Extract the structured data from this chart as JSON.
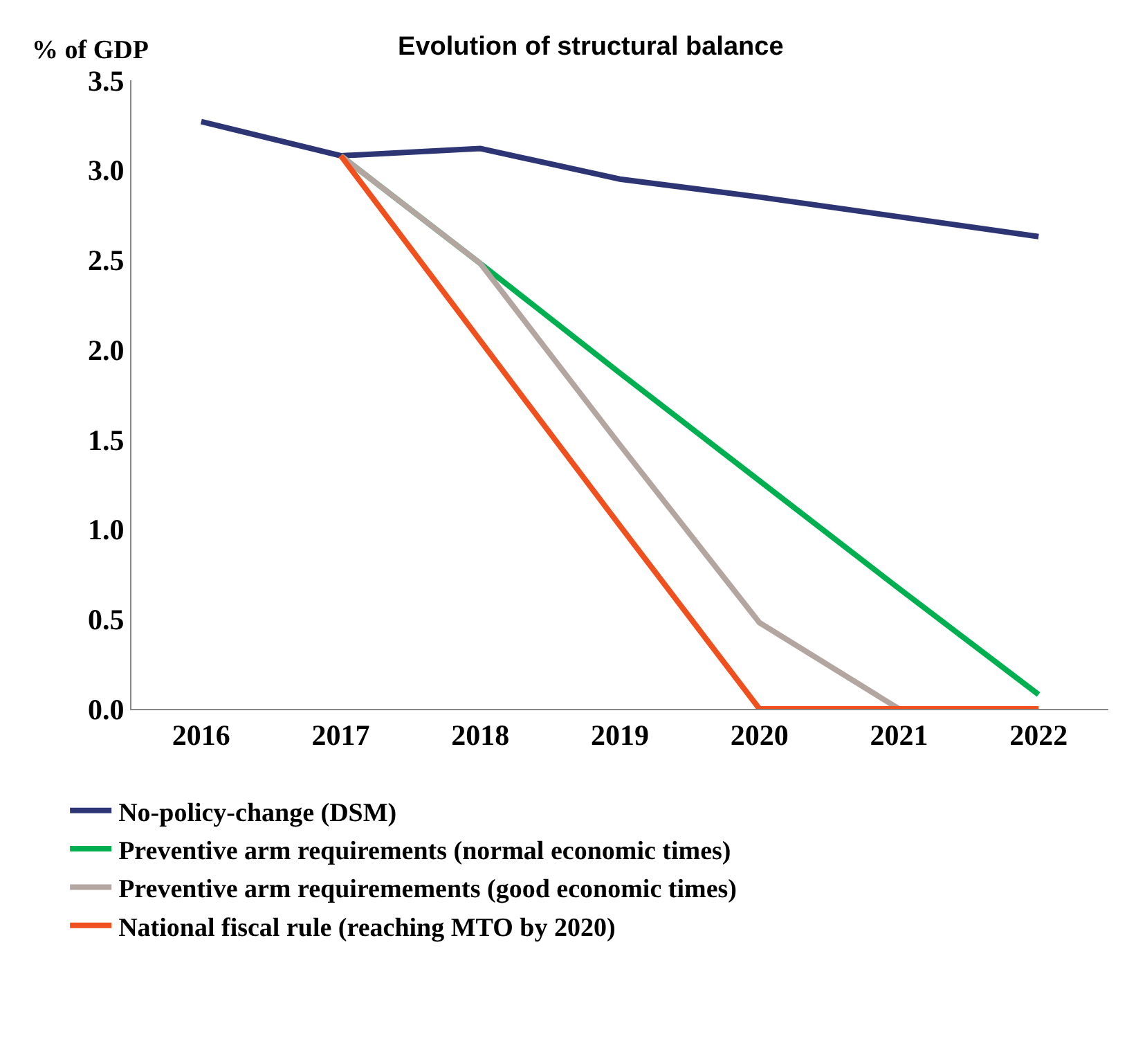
{
  "chart_data": {
    "type": "line",
    "title": "Evolution of structural balance",
    "ylabel": "% of GDP",
    "categories": [
      "2016",
      "2017",
      "2018",
      "2019",
      "2020",
      "2021",
      "2022"
    ],
    "series": [
      {
        "name": "No-policy-change (DSM)",
        "color": "#2e3574",
        "values": [
          3.27,
          3.08,
          3.12,
          2.95,
          2.85,
          2.74,
          2.63
        ]
      },
      {
        "name": "Preventive arm requirements (normal economic times)",
        "color": "#00b050",
        "values": [
          null,
          3.08,
          2.48,
          1.87,
          1.27,
          0.67,
          0.08
        ]
      },
      {
        "name": "Preventive arm requiremements (good economic times)",
        "color": "#b3a6a1",
        "values": [
          null,
          3.08,
          2.48,
          1.47,
          0.48,
          0.0,
          0.0
        ]
      },
      {
        "name": "National fiscal rule (reaching MTO by 2020)",
        "color": "#f0501e",
        "values": [
          null,
          3.08,
          2.05,
          1.02,
          0.0,
          0.0,
          0.0
        ]
      }
    ],
    "ylim": [
      0,
      3.5
    ],
    "yticks": [
      {
        "value": 0,
        "label": "0.0"
      },
      {
        "value": 0.5,
        "label": "0.5"
      },
      {
        "value": 1,
        "label": "1.0"
      },
      {
        "value": 1.5,
        "label": "1.5"
      },
      {
        "value": 2,
        "label": "2.0"
      },
      {
        "value": 2.5,
        "label": "2.5"
      },
      {
        "value": 3,
        "label": "3.0"
      },
      {
        "value": 3.5,
        "label": "3.5"
      }
    ],
    "grid": false,
    "legend": "bottom",
    "marker": "none",
    "line_style": "solid"
  }
}
